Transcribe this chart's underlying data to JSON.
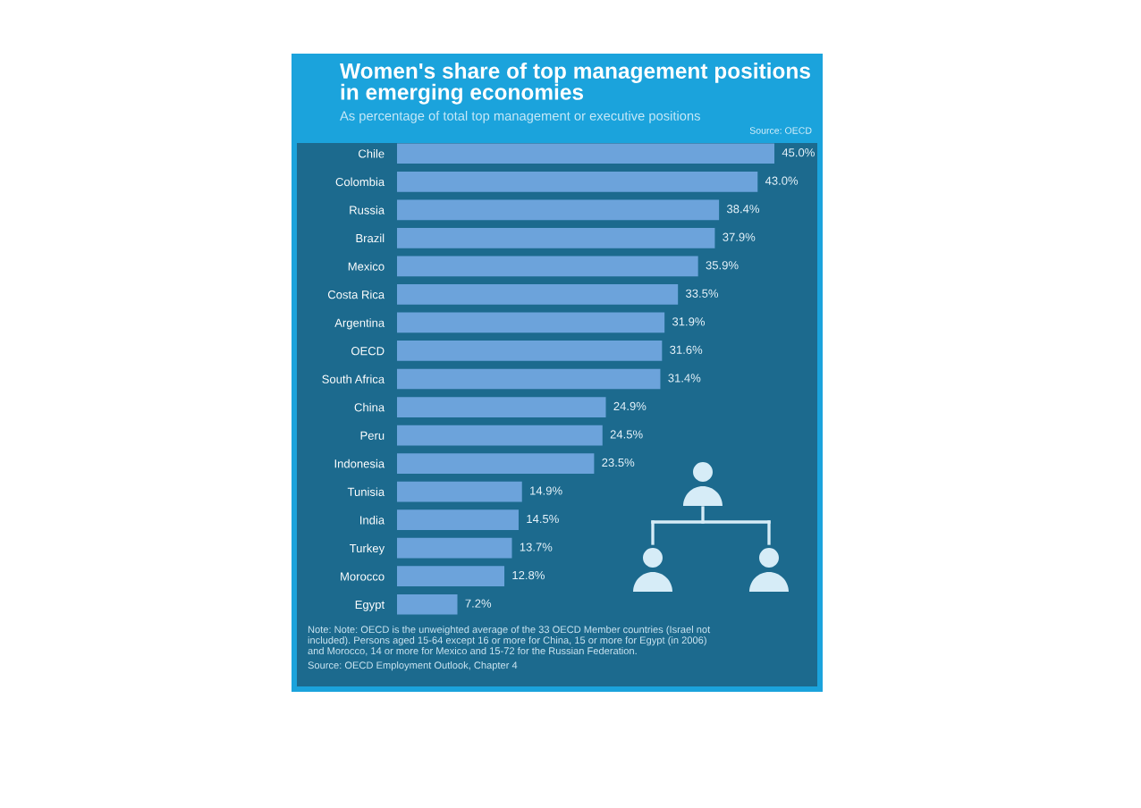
{
  "chart_data": {
    "type": "bar",
    "orientation": "horizontal",
    "title": "Women's share of top management positions in emerging economies",
    "subtitle": "As percentage of total top management or executive positions",
    "categories": [
      "Chile",
      "Colombia",
      "Russia",
      "Brazil",
      "Mexico",
      "Costa Rica",
      "Argentina",
      "OECD",
      "South Africa",
      "China",
      "Peru",
      "Indonesia",
      "Tunisia",
      "India",
      "Turkey",
      "Morocco",
      "Egypt"
    ],
    "values": [
      45.0,
      43.0,
      38.4,
      37.9,
      35.9,
      33.5,
      31.9,
      31.6,
      31.4,
      24.9,
      24.5,
      23.5,
      14.9,
      14.5,
      13.7,
      12.8,
      7.2
    ],
    "value_labels": [
      "45.0%",
      "43.0%",
      "38.4%",
      "37.9%",
      "35.9%",
      "33.5%",
      "31.9%",
      "31.6%",
      "31.4%",
      "24.9%",
      "24.5%",
      "23.5%",
      "14.9%",
      "14.5%",
      "13.7%",
      "12.8%",
      "7.2%"
    ],
    "color": "#6ca3db",
    "tick_labels": "y",
    "annotations": [
      "Source: OECD",
      "Note: Note: OECD is the unweighted average of the 33 OECD Member countries (Israel not included). Persons aged 15-64 except 16 or more for China, 15 or more for Egypt (in 2006) and Morocco, 14 or more for Mexico and 15-72 for the Russian Federation.",
      "Source: OECD Employment Outlook, Chapter 4"
    ]
  }
}
